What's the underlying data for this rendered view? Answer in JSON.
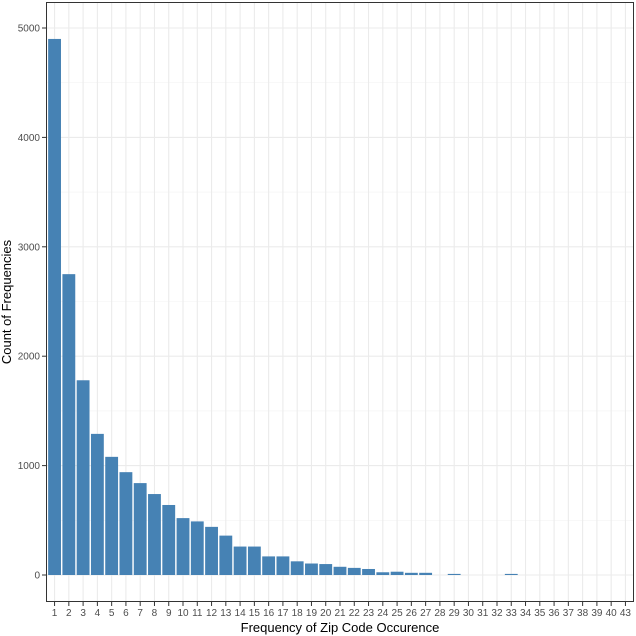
{
  "chart_data": {
    "type": "bar",
    "title": "",
    "xlabel": "Frequency of Zip Code Occurence",
    "ylabel": "Count of Frequencies",
    "ylim": [
      0,
      5000
    ],
    "y_ticks": [
      0,
      1000,
      2000,
      3000,
      4000,
      5000
    ],
    "grid": true,
    "bar_color": "#4682B4",
    "categories": [
      "1",
      "2",
      "3",
      "4",
      "5",
      "6",
      "7",
      "8",
      "9",
      "10",
      "11",
      "12",
      "13",
      "14",
      "15",
      "16",
      "17",
      "18",
      "19",
      "20",
      "21",
      "22",
      "23",
      "24",
      "25",
      "26",
      "27",
      "28",
      "29",
      "30",
      "31",
      "32",
      "33",
      "34",
      "35",
      "36",
      "37",
      "38",
      "39",
      "40",
      "43"
    ],
    "values": [
      4900,
      2750,
      1780,
      1290,
      1080,
      940,
      840,
      740,
      640,
      520,
      490,
      440,
      360,
      260,
      260,
      170,
      170,
      125,
      105,
      100,
      75,
      65,
      55,
      25,
      30,
      20,
      20,
      0,
      10,
      0,
      0,
      0,
      10,
      0,
      0,
      0,
      0,
      0,
      0,
      0,
      0
    ]
  }
}
